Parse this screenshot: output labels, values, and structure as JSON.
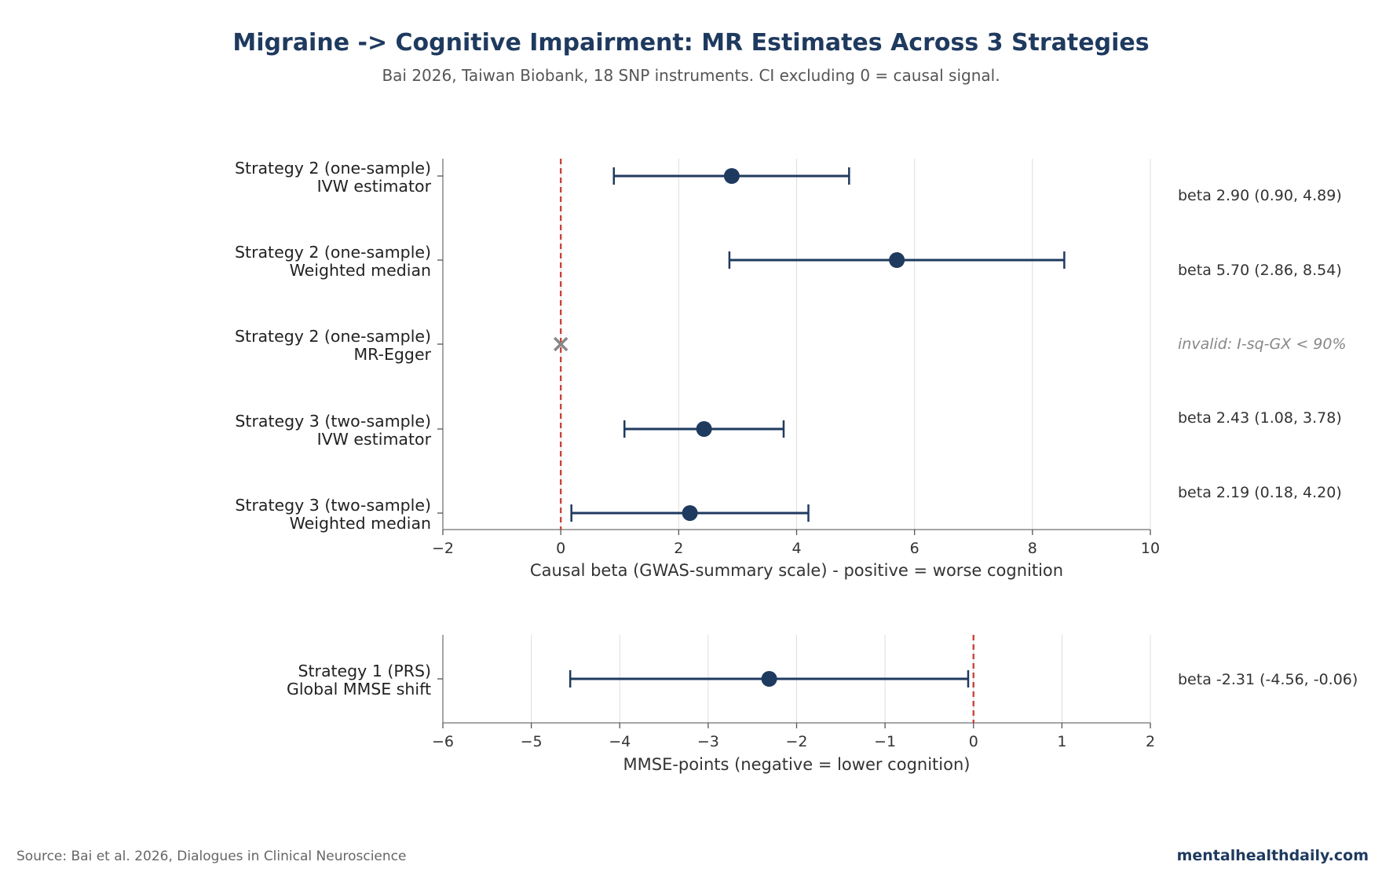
{
  "title": "Migraine -> Cognitive Impairment: MR Estimates Across 3 Strategies",
  "subtitle": "Bai 2026, Taiwan Biobank, 18 SNP instruments. CI excluding 0 = causal signal.",
  "footer": {
    "source": "Source: Bai et al. 2026, Dialogues in Clinical Neuroscience",
    "brand": "mentalhealthdaily.com"
  },
  "colors": {
    "point": "#1f3a5f",
    "reference_line": "#c9443a",
    "invalid_marker": "#888888",
    "grid": "#dddddd",
    "axis": "#888888"
  },
  "chart_data": [
    {
      "type": "forest",
      "xlabel": "Causal beta (GWAS-summary scale)  -  positive = worse cognition",
      "xlim": [
        -2,
        10
      ],
      "xticks": [
        -2,
        0,
        2,
        4,
        6,
        8,
        10
      ],
      "xtick_labels": [
        "−2",
        "0",
        "2",
        "4",
        "6",
        "8",
        "10"
      ],
      "reference_x": 0,
      "grid": true,
      "rows": [
        {
          "line1": "Strategy 2 (one-sample)",
          "line2": "IVW estimator",
          "beta": 2.9,
          "lo": 0.9,
          "hi": 4.89,
          "valid": true,
          "annotation": "beta 2.90  (0.90, 4.89)"
        },
        {
          "line1": "Strategy 2 (one-sample)",
          "line2": "Weighted median",
          "beta": 5.7,
          "lo": 2.86,
          "hi": 8.54,
          "valid": true,
          "annotation": "beta 5.70  (2.86, 8.54)"
        },
        {
          "line1": "Strategy 2 (one-sample)",
          "line2": "MR-Egger",
          "beta": 0,
          "valid": false,
          "annotation": "invalid: I-sq-GX < 90%"
        },
        {
          "line1": "Strategy 3 (two-sample)",
          "line2": "IVW estimator",
          "beta": 2.43,
          "lo": 1.08,
          "hi": 3.78,
          "valid": true,
          "annotation": "beta 2.43  (1.08, 3.78)"
        },
        {
          "line1": "Strategy 3 (two-sample)",
          "line2": "Weighted median",
          "beta": 2.19,
          "lo": 0.18,
          "hi": 4.2,
          "valid": true,
          "annotation": "beta 2.19  (0.18, 4.20)"
        }
      ]
    },
    {
      "type": "forest",
      "xlabel": "MMSE-points (negative = lower cognition)",
      "xlim": [
        -6,
        2
      ],
      "xticks": [
        -6,
        -5,
        -4,
        -3,
        -2,
        -1,
        0,
        1,
        2
      ],
      "xtick_labels": [
        "−6",
        "−5",
        "−4",
        "−3",
        "−2",
        "−1",
        "0",
        "1",
        "2"
      ],
      "reference_x": 0,
      "grid": true,
      "rows": [
        {
          "line1": "Strategy 1 (PRS)",
          "line2": "Global MMSE shift",
          "beta": -2.31,
          "lo": -4.56,
          "hi": -0.06,
          "valid": true,
          "annotation": "beta -2.31  (-4.56, -0.06)"
        }
      ]
    }
  ]
}
